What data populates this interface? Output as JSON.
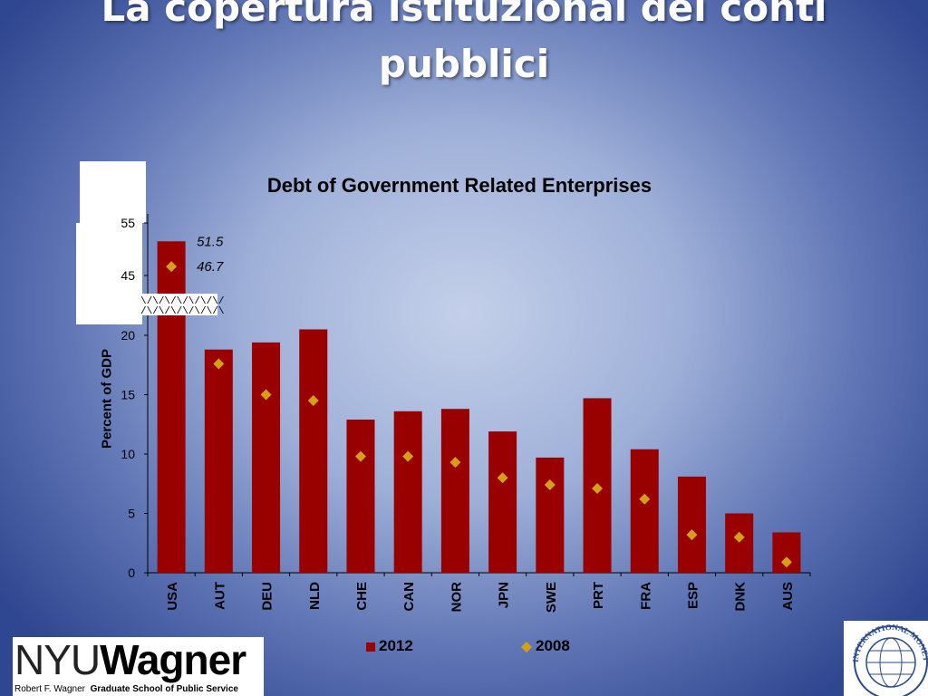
{
  "slide": {
    "title_line1": "La copertura istituzional dei conti",
    "title_line2": "pubblici"
  },
  "logos": {
    "nyu_name": "NYU",
    "wagner_name": "Wagner",
    "nyu_subtitle_plain": "Robert F. Wagner",
    "nyu_subtitle_bold": "Graduate School of Public Service",
    "imf_seal_text": "INTERNATIONAL MONETARY FUND"
  },
  "colors": {
    "bar_2012": "#990000",
    "marker_2008": "#d4a017",
    "background_center": "#c4d0ea",
    "background_edge": "#2f4690"
  },
  "chart_data": {
    "type": "bar",
    "title": "Debt of Government Related Enterprises",
    "ylabel": "Percent of GDP",
    "xlabel": "",
    "categories": [
      "USA",
      "AUT",
      "DEU",
      "NLD",
      "CHE",
      "CAN",
      "NOR",
      "JPN",
      "SWE",
      "PRT",
      "FRA",
      "ESP",
      "DNK",
      "AUS"
    ],
    "series": [
      {
        "name": "2012",
        "kind": "bar",
        "values": [
          51.5,
          18.8,
          19.4,
          20.5,
          12.9,
          13.6,
          13.8,
          11.9,
          9.7,
          14.7,
          10.4,
          8.1,
          5.0,
          3.4
        ]
      },
      {
        "name": "2008",
        "kind": "marker",
        "values": [
          46.7,
          17.6,
          15.0,
          14.5,
          9.8,
          9.8,
          9.3,
          8.0,
          7.4,
          7.1,
          6.2,
          3.2,
          3.0,
          0.9
        ]
      }
    ],
    "y_ticks_lower": [
      0,
      5,
      10,
      15,
      20
    ],
    "y_ticks_upper": [
      45,
      55
    ],
    "axis_break": {
      "from": 25,
      "to": 40
    },
    "ylim": [
      0,
      55
    ],
    "annotations": [
      {
        "category": "USA",
        "series": "2012",
        "text": "51.5"
      },
      {
        "category": "USA",
        "series": "2008",
        "text": "46.7"
      }
    ],
    "break_marks": [
      "\\/\\/\\/\\/\\/\\/\\/",
      "/\\/\\/\\/\\/\\/\\/\\"
    ],
    "grid": false,
    "legend": "bottom"
  }
}
